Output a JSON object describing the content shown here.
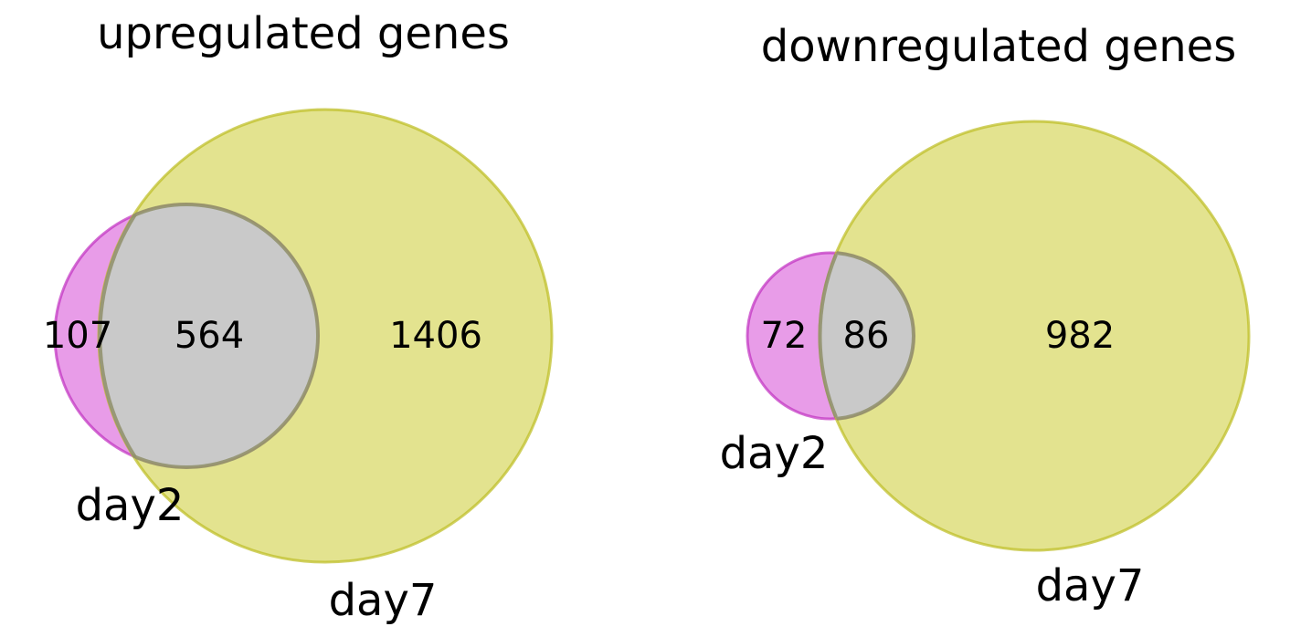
{
  "colors": {
    "day2": "#d95ad9",
    "day7": "#cccc33",
    "overlap": "#c9c9c9"
  },
  "chart_data": [
    {
      "type": "venn",
      "title": "upregulated genes",
      "sets": [
        "day2",
        "day7"
      ],
      "regions": {
        "day2_only": 107,
        "both": 564,
        "day7_only": 1406
      },
      "set_labels": {
        "day2": "day2",
        "day7": "day7"
      }
    },
    {
      "type": "venn",
      "title": "downregulated genes",
      "sets": [
        "day2",
        "day7"
      ],
      "regions": {
        "day2_only": 72,
        "both": 86,
        "day7_only": 982
      },
      "set_labels": {
        "day2": "day2",
        "day7": "day7"
      }
    }
  ]
}
